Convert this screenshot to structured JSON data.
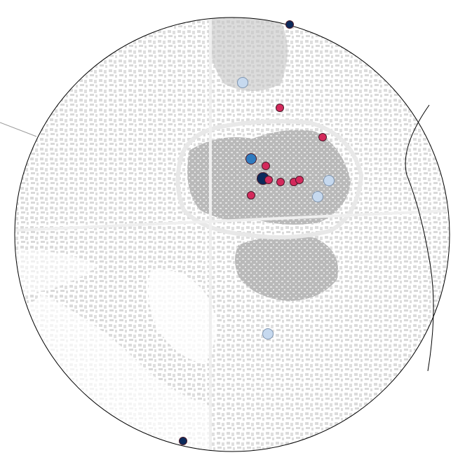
{
  "map": {
    "background_color": "#ffffff",
    "building_color": "#c8c8c8",
    "dense_core_color": "#b0b0b0",
    "boundary_color": "#000000",
    "road_color": "#9a9a9a"
  },
  "markers": [
    {
      "id": "m1",
      "category": "dark-navy",
      "color": "#0b2a5b",
      "size": "small"
    },
    {
      "id": "m2",
      "category": "light-blue",
      "color": "#c6d9ef",
      "size": "medium"
    },
    {
      "id": "m3",
      "category": "crimson",
      "color": "#d42a5c",
      "size": "small"
    },
    {
      "id": "m4",
      "category": "crimson",
      "color": "#d42a5c",
      "size": "small"
    },
    {
      "id": "m5",
      "category": "mid-blue",
      "color": "#2f7bbf",
      "size": "medium"
    },
    {
      "id": "m6",
      "category": "crimson",
      "color": "#d42a5c",
      "size": "small"
    },
    {
      "id": "m7",
      "category": "dark-navy",
      "color": "#0b2a5b",
      "size": "large"
    },
    {
      "id": "m8",
      "category": "crimson",
      "color": "#d42a5c",
      "size": "small"
    },
    {
      "id": "m9",
      "category": "crimson",
      "color": "#d42a5c",
      "size": "small"
    },
    {
      "id": "m10",
      "category": "crimson",
      "color": "#d42a5c",
      "size": "small"
    },
    {
      "id": "m11",
      "category": "crimson",
      "color": "#d42a5c",
      "size": "small"
    },
    {
      "id": "m12",
      "category": "crimson",
      "color": "#d42a5c",
      "size": "small"
    },
    {
      "id": "m13",
      "category": "light-blue",
      "color": "#c6d9ef",
      "size": "medium"
    },
    {
      "id": "m14",
      "category": "light-blue",
      "color": "#c6d9ef",
      "size": "medium"
    },
    {
      "id": "m15",
      "category": "light-blue",
      "color": "#c6d9ef",
      "size": "medium"
    },
    {
      "id": "m16",
      "category": "dark-navy",
      "color": "#0b2a5b",
      "size": "small"
    }
  ]
}
